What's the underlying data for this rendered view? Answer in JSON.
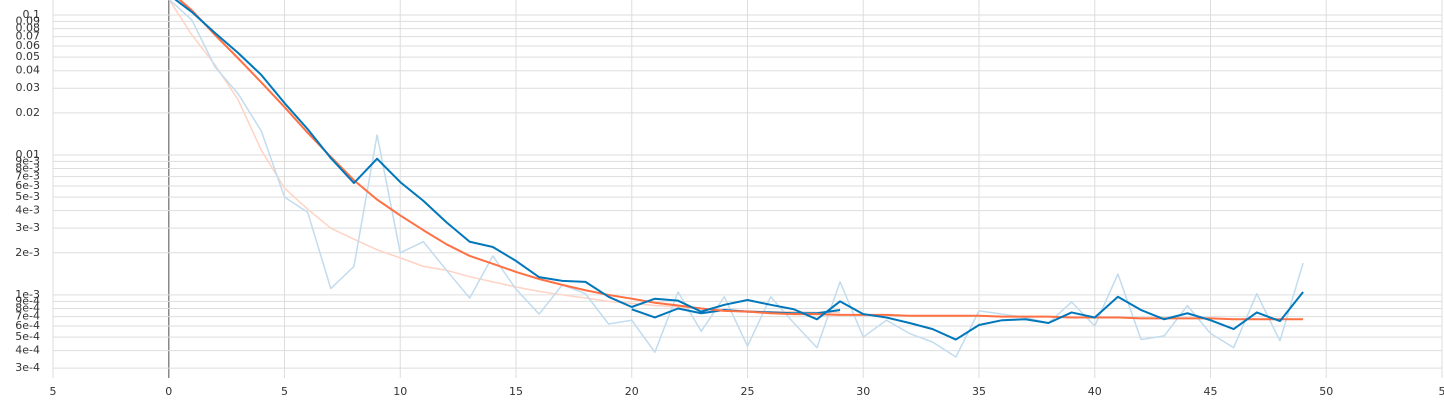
{
  "chart_data": {
    "type": "line",
    "log_scale": "y",
    "grid": true,
    "xlim": [
      -5,
      55
    ],
    "xticks": [
      {
        "value": -5,
        "label": "5"
      },
      0,
      5,
      10,
      15,
      20,
      25,
      30,
      35,
      40,
      45,
      50,
      {
        "value": 55,
        "label": "5"
      }
    ],
    "ylim": [
      0.000255,
      0.128
    ],
    "yticks": [
      0.1,
      0.09,
      0.08,
      0.07,
      0.06,
      0.05,
      0.04,
      0.03,
      0.02,
      0.01,
      {
        "value": 0.009,
        "label": "9e-3"
      },
      {
        "value": 0.008,
        "label": "8e-3"
      },
      {
        "value": 0.007,
        "label": "7e-3"
      },
      {
        "value": 0.006,
        "label": "6e-3"
      },
      {
        "value": 0.005,
        "label": "5e-3"
      },
      {
        "value": 0.004,
        "label": "4e-3"
      },
      {
        "value": 0.003,
        "label": "3e-3"
      },
      {
        "value": 0.002,
        "label": "2e-3"
      },
      {
        "value": 0.001,
        "label": "1e-3"
      },
      {
        "value": 0.0009,
        "label": "9e-4"
      },
      {
        "value": 0.0008,
        "label": "8e-4"
      },
      {
        "value": 0.0007,
        "label": "7e-4"
      },
      {
        "value": 0.0006,
        "label": "6e-4"
      },
      {
        "value": 0.0005,
        "label": "5e-4"
      },
      {
        "value": 0.0004,
        "label": "4e-4"
      },
      {
        "value": 0.0003,
        "label": "3e-4"
      }
    ],
    "series": [
      {
        "color": "#ffd3c4",
        "width": 1.5,
        "x": [
          0,
          1,
          2,
          3,
          4,
          5,
          6,
          7,
          8,
          9,
          10,
          11,
          12,
          13,
          14,
          15,
          16,
          17,
          18,
          19,
          20,
          21,
          22,
          23,
          24,
          25,
          26,
          27,
          28,
          29
        ],
        "values": [
          0.13,
          0.072,
          0.044,
          0.0247,
          0.0108,
          0.0058,
          0.0041,
          0.003,
          0.0025,
          0.0021,
          0.00184,
          0.0016,
          0.0015,
          0.00135,
          0.00124,
          0.00114,
          0.00106,
          0.001,
          0.00095,
          0.0009,
          0.00087,
          0.00084,
          0.00082,
          0.0008,
          0.00078,
          0.00077,
          0.00076,
          0.00076,
          0.00075,
          0.00075
        ]
      },
      {
        "color": "#c2dcee",
        "width": 1.5,
        "x": [
          0,
          1,
          2,
          3,
          4,
          5,
          6,
          7,
          8,
          9,
          10,
          11,
          12,
          13,
          14,
          15,
          16,
          17,
          18,
          19,
          20,
          21,
          22,
          23,
          24,
          25,
          26,
          27,
          28,
          29,
          30,
          31,
          32,
          33,
          34,
          35,
          36,
          37,
          38,
          39,
          40,
          41,
          42,
          43,
          44,
          45,
          46,
          47,
          48,
          49
        ],
        "values": [
          0.13,
          0.092,
          0.0425,
          0.0273,
          0.0148,
          0.005,
          0.0039,
          0.00111,
          0.0016,
          0.0139,
          0.002,
          0.0024,
          0.0015,
          0.00095,
          0.0019,
          0.0011,
          0.00073,
          0.00118,
          0.00102,
          0.00062,
          0.00066,
          0.00039,
          0.00105,
          0.00055,
          0.00097,
          0.00043,
          0.00097,
          0.00063,
          0.00042,
          0.00124,
          0.0005,
          0.00066,
          0.00053,
          0.00046,
          0.00036,
          0.00077,
          0.00073,
          0.00069,
          0.00063,
          0.00089,
          0.0006,
          0.00141,
          0.00048,
          0.00051,
          0.00084,
          0.00053,
          0.00042,
          0.00102,
          0.00047,
          0.00169
        ]
      },
      {
        "color": "#0077bb",
        "width": 2,
        "x": [
          20,
          21,
          22,
          23,
          24,
          25,
          26,
          27,
          28,
          29
        ],
        "values": [
          0.00079,
          0.00069,
          0.0008,
          0.00074,
          0.00078,
          0.00076,
          0.00075,
          0.00074,
          0.00074,
          0.00078
        ]
      },
      {
        "color": "#ff7043",
        "width": 2,
        "x": [
          0,
          1,
          2,
          3,
          4,
          5,
          6,
          7,
          8,
          9,
          10,
          11,
          12,
          13,
          14,
          15,
          16,
          17,
          18,
          19,
          20,
          21,
          22,
          23,
          24,
          25,
          26,
          27,
          28,
          29,
          30,
          31,
          32,
          33,
          34,
          35,
          36,
          37,
          38,
          39,
          40,
          41,
          42,
          43,
          44,
          45,
          46,
          47,
          48,
          49
        ],
        "values": [
          0.15,
          0.108,
          0.072,
          0.049,
          0.033,
          0.022,
          0.0144,
          0.0097,
          0.0066,
          0.0048,
          0.0037,
          0.0029,
          0.0023,
          0.0019,
          0.00167,
          0.00146,
          0.0013,
          0.00118,
          0.00108,
          0.001,
          0.00094,
          0.00088,
          0.00084,
          0.0008,
          0.00077,
          0.00076,
          0.00074,
          0.00073,
          0.00073,
          0.00072,
          0.00072,
          0.00072,
          0.00071,
          0.00071,
          0.00071,
          0.00071,
          0.0007,
          0.0007,
          0.0007,
          0.00069,
          0.00069,
          0.00069,
          0.00068,
          0.00068,
          0.00068,
          0.00068,
          0.00067,
          0.00067,
          0.00067,
          0.00067
        ]
      },
      {
        "color": "#0077bb",
        "width": 2,
        "x": [
          0,
          1,
          2,
          3,
          4,
          5,
          6,
          7,
          8,
          9,
          10,
          11,
          12,
          13,
          14,
          15,
          16,
          17,
          18,
          19,
          20,
          21,
          22,
          23,
          24,
          25,
          26,
          27,
          28,
          29,
          30,
          31,
          32,
          33,
          34,
          35,
          36,
          37,
          38,
          39,
          40,
          41,
          42,
          43,
          44,
          45,
          46,
          47,
          48,
          49
        ],
        "values": [
          0.14,
          0.105,
          0.0744,
          0.0535,
          0.0373,
          0.0235,
          0.0153,
          0.0095,
          0.0063,
          0.0094,
          0.0064,
          0.0047,
          0.0033,
          0.0024,
          0.0022,
          0.00175,
          0.00134,
          0.00126,
          0.00124,
          0.00097,
          0.00082,
          0.00094,
          0.00091,
          0.00076,
          0.00085,
          0.00092,
          0.00085,
          0.00079,
          0.00067,
          0.0009,
          0.00073,
          0.00069,
          0.00063,
          0.00057,
          0.00048,
          0.00061,
          0.00066,
          0.00067,
          0.00063,
          0.00075,
          0.00069,
          0.00097,
          0.00078,
          0.00067,
          0.00074,
          0.00066,
          0.00057,
          0.00075,
          0.00065,
          0.00105
        ]
      }
    ]
  }
}
